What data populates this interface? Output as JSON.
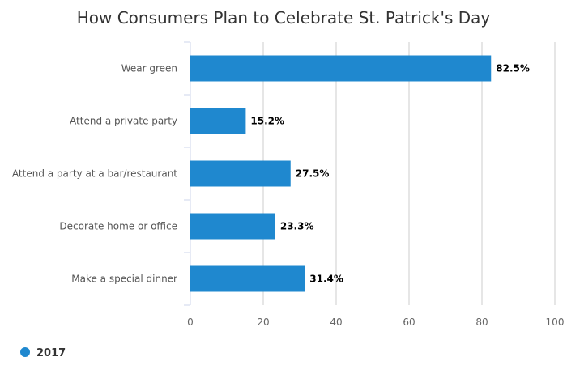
{
  "chart_data": {
    "type": "bar",
    "orientation": "horizontal",
    "title": "How Consumers Plan to Celebrate St. Patrick's Day",
    "categories": [
      "Wear green",
      "Attend a private party",
      "Attend a party at a bar/restaurant",
      "Decorate home or office",
      "Make a special dinner"
    ],
    "series": [
      {
        "name": "2017",
        "values": [
          82.5,
          15.2,
          27.5,
          23.3,
          31.4
        ],
        "data_labels": [
          "82.5%",
          "15.2%",
          "27.5%",
          "23.3%",
          "31.4%"
        ],
        "color": "#1f88cf"
      }
    ],
    "xlim": [
      0,
      100
    ],
    "ticks": [
      0,
      20,
      40,
      60,
      80,
      100
    ],
    "tick_labels": [
      "0",
      "20",
      "40",
      "60",
      "80",
      "100"
    ],
    "grid": true,
    "legend": "bottom-left"
  },
  "colors": {
    "bar": "#1f88cf",
    "grid": "#cccccc",
    "axis": "#ccd6eb"
  }
}
